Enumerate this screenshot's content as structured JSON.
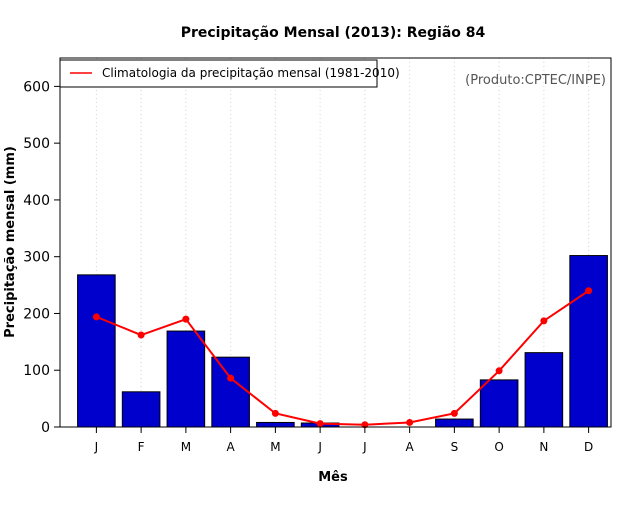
{
  "chart_data": {
    "type": "bar",
    "title": "Precipitação Mensal (2013): Região 84",
    "xlabel": "Mês",
    "ylabel": "Precipitação mensal (mm)",
    "ylim": [
      0,
      650
    ],
    "yticks": [
      0,
      100,
      200,
      300,
      400,
      500,
      600
    ],
    "categories": [
      "J",
      "F",
      "M",
      "A",
      "M",
      "J",
      "J",
      "A",
      "S",
      "O",
      "N",
      "D"
    ],
    "series": [
      {
        "name": "Precipitação mensal (2013)",
        "type": "bar",
        "color": "#0000cd",
        "values": [
          268,
          62,
          169,
          123,
          8,
          7,
          0,
          0,
          14,
          83,
          131,
          302
        ]
      },
      {
        "name": "Climatologia da precipitação mensal (1981-2010)",
        "type": "line",
        "color": "#ff0000",
        "values": [
          194,
          162,
          190,
          86,
          24,
          6,
          4,
          8,
          24,
          99,
          187,
          240
        ]
      }
    ],
    "legend": {
      "position": "top-left",
      "entries": [
        "Climatologia da precipitação mensal (1981-2010)"
      ]
    },
    "annotation": "(Produto:CPTEC/INPE)",
    "grid": "vertical-dotted"
  }
}
